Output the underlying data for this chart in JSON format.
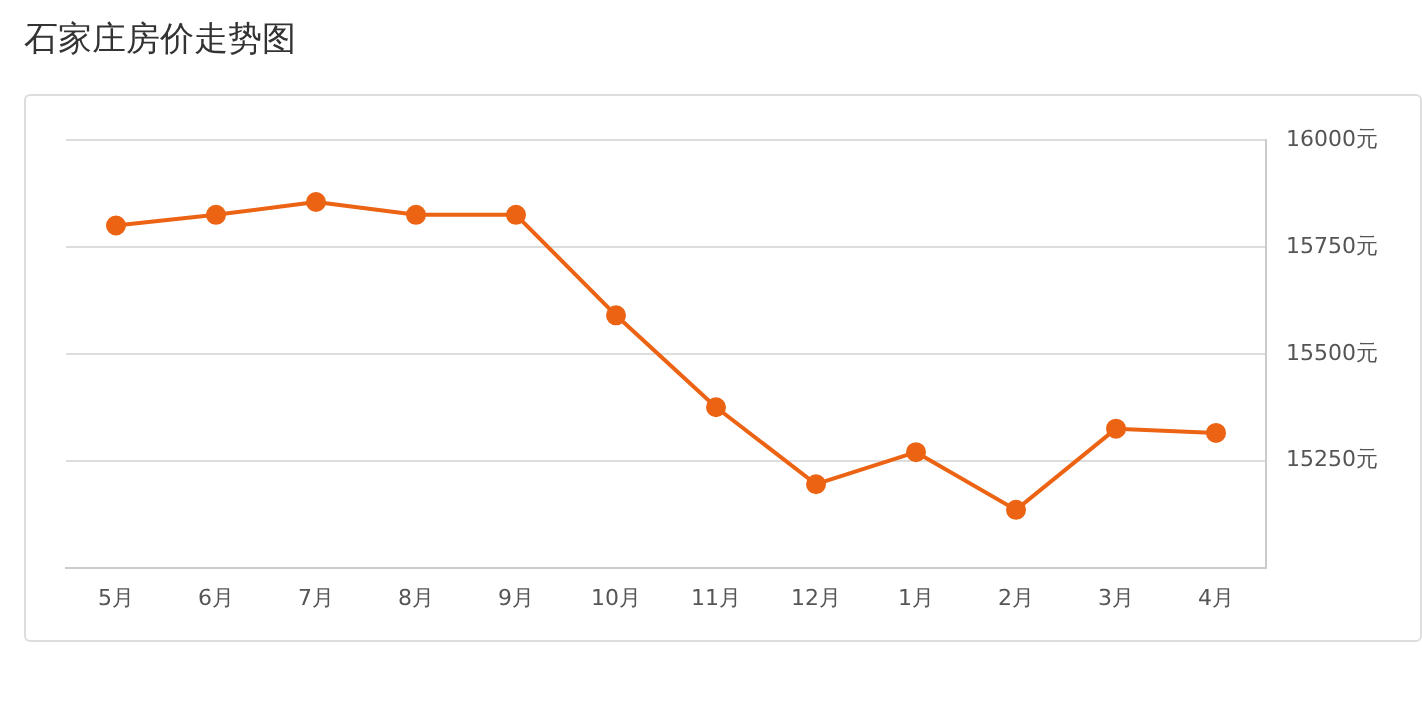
{
  "chart_data": {
    "type": "line",
    "title": "石家庄房价走势图",
    "categories": [
      "5月",
      "6月",
      "7月",
      "8月",
      "9月",
      "10月",
      "11月",
      "12月",
      "1月",
      "2月",
      "3月",
      "4月"
    ],
    "series": [
      {
        "color": "#eb6313",
        "values": [
          15800,
          15825,
          15855,
          15825,
          15825,
          15590,
          15375,
          15195,
          15270,
          15135,
          15325,
          15315
        ]
      }
    ],
    "ylim": [
      15000,
      16000
    ],
    "yticks": [
      {
        "value": 15250,
        "label": "15250元"
      },
      {
        "value": 15500,
        "label": "15500元"
      },
      {
        "value": 15750,
        "label": "15750元"
      },
      {
        "value": 16000,
        "label": "16000元"
      }
    ],
    "grid": "y",
    "legend": false,
    "marker": "circle",
    "line_style": "solid"
  }
}
